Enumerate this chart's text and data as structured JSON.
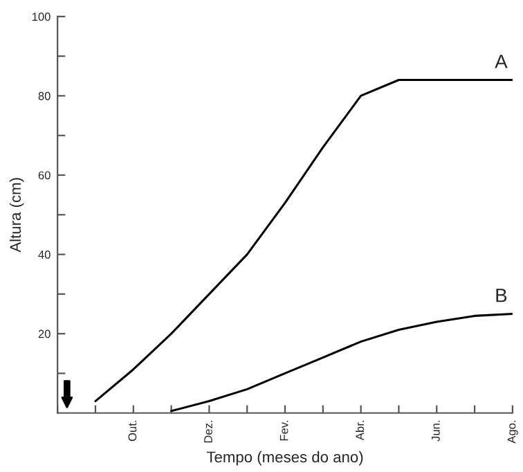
{
  "chart_data": {
    "type": "line",
    "xlabel": "Tempo (meses do ano)",
    "ylabel": "Altura (cm)",
    "categories": [
      null,
      null,
      "Out.",
      null,
      "Dez.",
      null,
      "Fev.",
      null,
      "Abr.",
      null,
      "Jun.",
      null,
      "Ago."
    ],
    "ylim": [
      0,
      100
    ],
    "yticks": [
      {
        "value": 10,
        "label": null
      },
      20,
      {
        "value": 30,
        "label": null
      },
      40,
      {
        "value": 50,
        "label": null
      },
      60,
      {
        "value": 70,
        "label": null
      },
      80,
      {
        "value": 90,
        "label": null
      },
      100
    ],
    "grid": false,
    "marker": "none",
    "line_style": "solid",
    "series": [
      {
        "name": "A",
        "color": "#000000",
        "values": [
          null,
          3,
          11,
          20,
          30,
          40,
          53,
          67,
          80,
          84,
          84,
          84,
          84
        ]
      },
      {
        "name": "B",
        "color": "#000000",
        "values": [
          null,
          null,
          null,
          0.5,
          3,
          6,
          10,
          14,
          18,
          21,
          23,
          24.5,
          25
        ]
      }
    ]
  }
}
